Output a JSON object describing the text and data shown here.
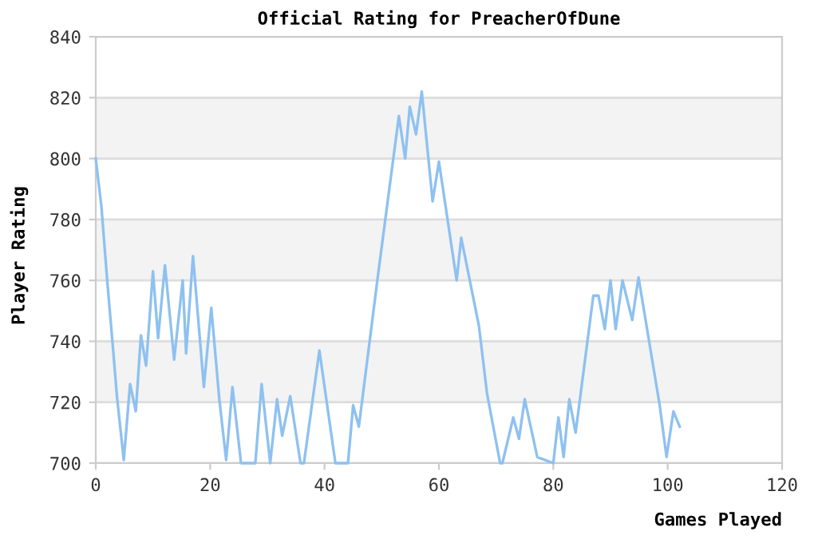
{
  "chart_data": {
    "type": "line",
    "title": "Official Rating for PreacherOfDune",
    "xlabel": "Games Played",
    "ylabel": "Player Rating",
    "series": [
      {
        "color": "#8ec1f0",
        "x": [
          0,
          1,
          2,
          3,
          3.7,
          4.9,
          6,
          7,
          7.9,
          8.8,
          10,
          10.9,
          12.1,
          13.7,
          15.2,
          15.8,
          17,
          18.9,
          20.2,
          21.6,
          22.8,
          23.9,
          25.4,
          27.9,
          29,
          30.5,
          31.7,
          32.6,
          34,
          35.8,
          36.4,
          39.1,
          41.9,
          44.1,
          45,
          46,
          49.3,
          53,
          54.1,
          54.9,
          56,
          57,
          58.9,
          60,
          63.1,
          63.9,
          67,
          68.4,
          70.7,
          71.1,
          73,
          74,
          75,
          77.2,
          80,
          80.9,
          81.8,
          82.8,
          83.9,
          87,
          87.9,
          89,
          90,
          90.9,
          92.1,
          93.8,
          94.9,
          98.6,
          99.8,
          101,
          102.1
        ],
        "values": [
          800,
          784,
          760,
          738,
          722,
          701,
          726,
          717,
          742,
          732,
          763,
          741,
          765,
          734,
          760,
          736,
          768,
          725,
          751,
          721,
          701,
          725,
          700,
          700,
          726,
          700,
          721,
          709,
          722,
          700,
          700,
          737,
          700,
          700,
          719,
          712,
          761,
          814,
          800,
          817,
          808,
          822,
          786,
          799,
          760,
          774,
          745,
          723,
          700,
          700,
          715,
          708,
          721,
          702,
          700,
          715,
          702,
          721,
          710,
          755,
          755,
          744,
          760,
          744,
          760,
          747,
          761,
          719,
          702,
          717,
          712
        ]
      }
    ],
    "xlim": [
      0,
      120
    ],
    "xticks": [
      0,
      20,
      40,
      60,
      80,
      100,
      120
    ],
    "ylim": [
      700,
      840
    ],
    "yticks": [
      700,
      720,
      740,
      760,
      780,
      800,
      820,
      840
    ],
    "bands": [
      {
        "axis": "y",
        "from": 720,
        "to": 740,
        "color": "#f3f3f3"
      },
      {
        "axis": "y",
        "from": 760,
        "to": 780,
        "color": "#f3f3f3"
      },
      {
        "axis": "y",
        "from": 800,
        "to": 820,
        "color": "#f3f3f3"
      }
    ],
    "grid": "y",
    "legend": false,
    "marker": "none",
    "line_style": "solid"
  }
}
